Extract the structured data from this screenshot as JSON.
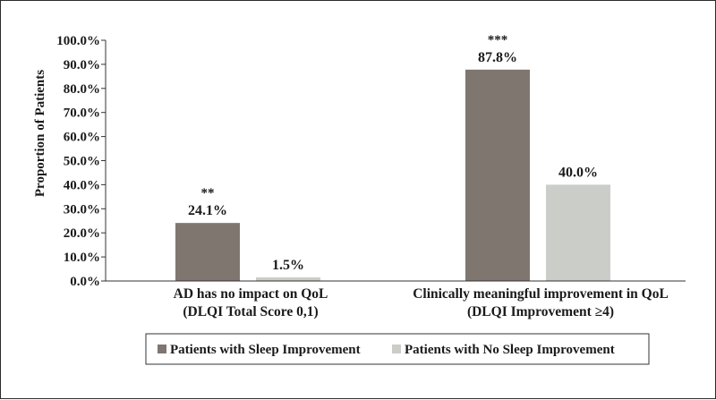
{
  "chart_data": {
    "type": "bar",
    "ylabel": "Proportion of Patients",
    "ylim": [
      0,
      100
    ],
    "yticks": [
      "0.0%",
      "10.0%",
      "20.0%",
      "30.0%",
      "40.0%",
      "50.0%",
      "60.0%",
      "70.0%",
      "80.0%",
      "90.0%",
      "100.0%"
    ],
    "grid": false,
    "legend_position": "bottom",
    "categories": [
      [
        "AD has no impact on QoL",
        "(DLQI Total Score 0,1)"
      ],
      [
        "Clinically meaningful improvement in QoL",
        "(DLQI Improvement ≥4)"
      ]
    ],
    "series": [
      {
        "name": "Patients with Sleep Improvement",
        "color": "#7f7670",
        "values": [
          24.1,
          87.8
        ],
        "labels": [
          "24.1%",
          "87.8%"
        ],
        "significance": [
          "**",
          "***"
        ]
      },
      {
        "name": "Patients with No Sleep Improvement",
        "color": "#cbcdc8",
        "values": [
          1.5,
          40.0
        ],
        "labels": [
          "1.5%",
          "40.0%"
        ],
        "significance": [
          "",
          ""
        ]
      }
    ]
  }
}
